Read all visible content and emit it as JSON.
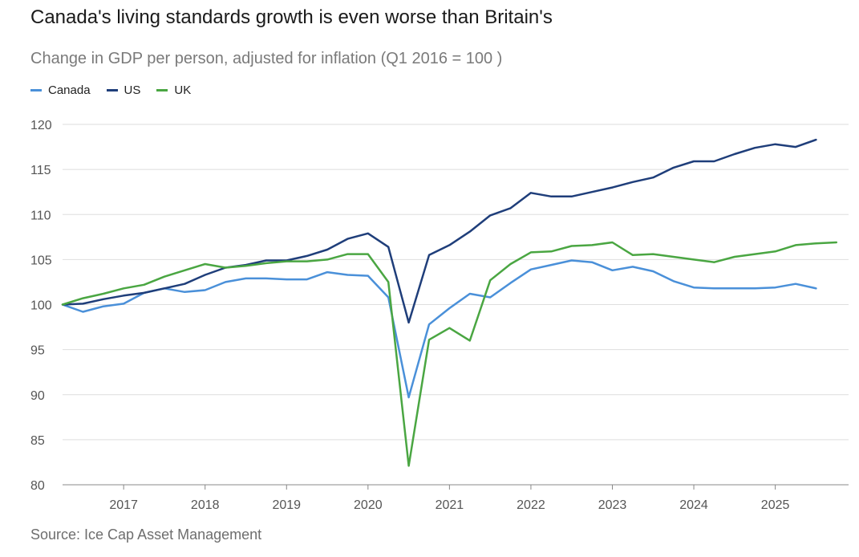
{
  "chart_data": {
    "type": "line",
    "title": "Canada's living standards growth is even worse than Britain's",
    "subtitle": "Change in GDP per person, adjusted for inflation (Q1 2016 = 100 )",
    "source": "Source: Ice Cap Asset Management",
    "legend_placement": "top-left",
    "grid": true,
    "ylim": [
      80,
      120
    ],
    "yticks": [
      80,
      85,
      90,
      95,
      100,
      105,
      110,
      115,
      120
    ],
    "xlim": [
      2016.25,
      2025.9
    ],
    "xticks": [
      2017,
      2018,
      2019,
      2020,
      2021,
      2022,
      2023,
      2024,
      2025
    ],
    "x": [
      2016.25,
      2016.5,
      2016.75,
      2017.0,
      2017.25,
      2017.5,
      2017.75,
      2018.0,
      2018.25,
      2018.5,
      2018.75,
      2019.0,
      2019.25,
      2019.5,
      2019.75,
      2020.0,
      2020.25,
      2020.5,
      2020.75,
      2021.0,
      2021.25,
      2021.5,
      2021.75,
      2022.0,
      2022.25,
      2022.5,
      2022.75,
      2023.0,
      2023.25,
      2023.5,
      2023.75,
      2024.0,
      2024.25,
      2024.5,
      2024.75,
      2025.0,
      2025.25,
      2025.5,
      2025.75
    ],
    "series": [
      {
        "name": "Canada",
        "color": "#4a90d9",
        "values": [
          100.0,
          99.2,
          99.8,
          100.1,
          101.3,
          101.8,
          101.4,
          101.6,
          102.5,
          102.9,
          102.9,
          102.8,
          102.8,
          103.6,
          103.3,
          103.2,
          100.8,
          89.7,
          97.8,
          99.6,
          101.2,
          100.8,
          102.4,
          103.9,
          104.4,
          104.9,
          104.7,
          103.8,
          104.2,
          103.7,
          102.6,
          101.9,
          101.8,
          101.8,
          101.8,
          101.9,
          102.3,
          101.8,
          null
        ]
      },
      {
        "name": "US",
        "color": "#1f3e7a",
        "values": [
          100.0,
          100.1,
          100.6,
          101.0,
          101.3,
          101.8,
          102.3,
          103.3,
          104.1,
          104.4,
          104.9,
          104.9,
          105.4,
          106.1,
          107.3,
          107.9,
          106.4,
          98.0,
          105.5,
          106.6,
          108.1,
          109.9,
          110.7,
          112.4,
          112.0,
          112.0,
          112.5,
          113.0,
          113.6,
          114.1,
          115.2,
          115.9,
          115.9,
          116.7,
          117.4,
          117.8,
          117.5,
          118.3,
          null
        ]
      },
      {
        "name": "UK",
        "color": "#4aa642",
        "values": [
          100.0,
          100.7,
          101.2,
          101.8,
          102.2,
          103.1,
          103.8,
          104.5,
          104.1,
          104.3,
          104.6,
          104.8,
          104.8,
          105.0,
          105.6,
          105.6,
          102.5,
          82.1,
          96.1,
          97.4,
          96.0,
          102.7,
          104.5,
          105.8,
          105.9,
          106.5,
          106.6,
          106.9,
          105.5,
          105.6,
          105.3,
          105.0,
          104.7,
          105.3,
          105.6,
          105.9,
          106.6,
          106.8,
          106.9
        ]
      }
    ]
  }
}
